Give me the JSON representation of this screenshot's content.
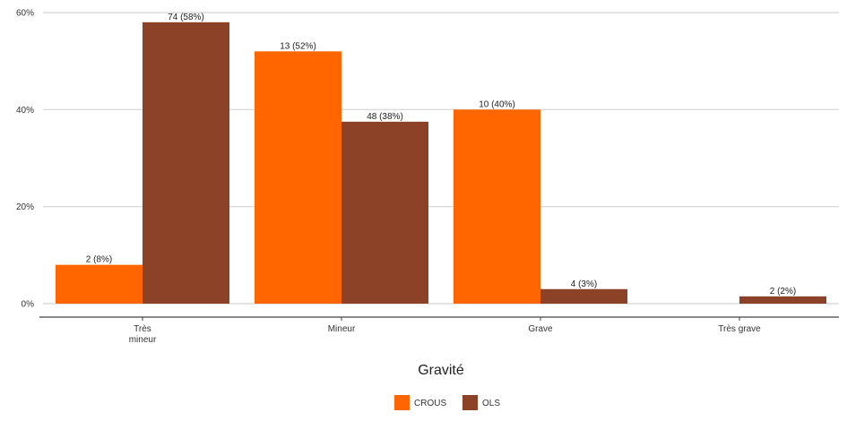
{
  "chart_data": {
    "type": "bar",
    "xlabel": "Gravité",
    "ylabel": "",
    "ylim": [
      0,
      0.6
    ],
    "y_ticks": [
      {
        "value": 0,
        "label": "0%"
      },
      {
        "value": 0.2,
        "label": "20%"
      },
      {
        "value": 0.4,
        "label": "40%"
      },
      {
        "value": 0.6,
        "label": "60%"
      }
    ],
    "categories": [
      {
        "lines": [
          "Très",
          "mineur"
        ]
      },
      {
        "lines": [
          "Mineur"
        ]
      },
      {
        "lines": [
          "Grave"
        ]
      },
      {
        "lines": [
          "Très grave"
        ]
      }
    ],
    "series": [
      {
        "name": "CROUS",
        "color": "#ff6600",
        "values": [
          0.08,
          0.52,
          0.4,
          null
        ],
        "labels": [
          "2 (8%)",
          "13 (52%)",
          "10 (40%)",
          null
        ]
      },
      {
        "name": "OLS",
        "color": "#8b4226",
        "values": [
          0.58,
          0.375,
          0.03,
          0.015
        ],
        "labels": [
          "74 (58%)",
          "48 (38%)",
          "4 (3%)",
          "2 (2%)"
        ]
      }
    ],
    "grid": true,
    "legend_position": "bottom"
  }
}
